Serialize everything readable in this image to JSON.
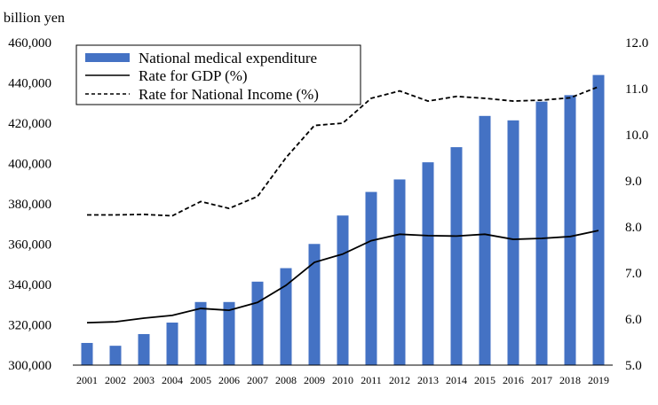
{
  "chart_data": {
    "type": "bar+line",
    "y_unit_label": "billion yen",
    "categories": [
      "2001",
      "2002",
      "2003",
      "2004",
      "2005",
      "2006",
      "2007",
      "2008",
      "2009",
      "2010",
      "2011",
      "2012",
      "2013",
      "2014",
      "2015",
      "2016",
      "2017",
      "2018",
      "2019"
    ],
    "series": [
      {
        "name": "National medical expenditure",
        "type": "bar",
        "axis": "left",
        "values": [
          311000,
          309600,
          315400,
          321100,
          331300,
          331300,
          341400,
          348100,
          360100,
          374200,
          385900,
          392100,
          400600,
          408100,
          423600,
          421400,
          430700,
          433900,
          443900
        ]
      },
      {
        "name": "Rate for GDP (%)",
        "type": "line",
        "style": "solid",
        "axis": "right",
        "values": [
          5.92,
          5.94,
          6.02,
          6.08,
          6.23,
          6.19,
          6.36,
          6.73,
          7.23,
          7.41,
          7.7,
          7.84,
          7.81,
          7.8,
          7.84,
          7.73,
          7.75,
          7.79,
          7.92
        ]
      },
      {
        "name": "Rate for National Income (%)",
        "type": "line",
        "style": "dashed",
        "axis": "right",
        "values": [
          8.26,
          8.26,
          8.27,
          8.24,
          8.55,
          8.4,
          8.66,
          9.5,
          10.2,
          10.25,
          10.79,
          10.95,
          10.73,
          10.83,
          10.79,
          10.73,
          10.75,
          10.8,
          11.04
        ]
      }
    ],
    "y_left": {
      "range": [
        300000,
        460000
      ],
      "ticks": [
        "300,000",
        "320,000",
        "340,000",
        "360,000",
        "380,000",
        "400,000",
        "420,000",
        "440,000",
        "460,000"
      ]
    },
    "y_right": {
      "range": [
        5.0,
        12.0
      ],
      "ticks": [
        "5.0",
        "6.0",
        "7.0",
        "8.0",
        "9.0",
        "10.0",
        "11.0",
        "12.0"
      ]
    },
    "grid": false,
    "legend_position": "top-left",
    "colors": {
      "bar": "#4472C4",
      "gdp_line": "#000000",
      "ni_line": "#000000"
    }
  }
}
